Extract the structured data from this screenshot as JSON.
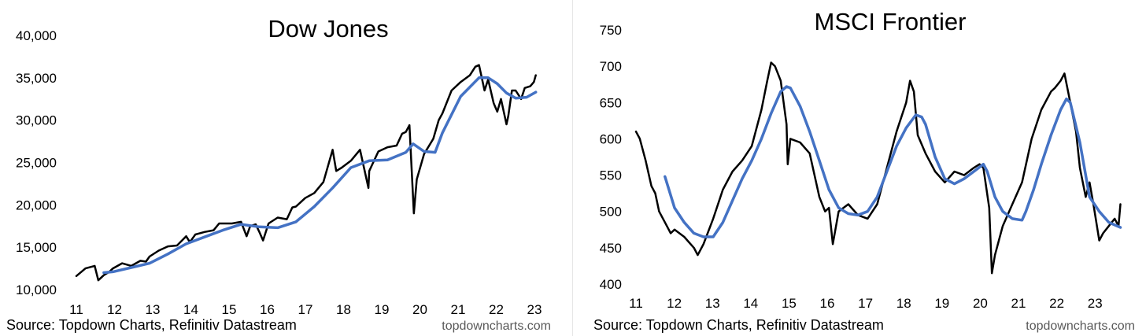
{
  "chart_data": [
    {
      "type": "line",
      "title": "Dow Jones",
      "xlabel": "",
      "ylabel": "",
      "x_ticks": [
        "11",
        "12",
        "13",
        "14",
        "15",
        "16",
        "17",
        "18",
        "19",
        "20",
        "21",
        "22",
        "23"
      ],
      "y_ticks": [
        "10,000",
        "15,000",
        "20,000",
        "25,000",
        "30,000",
        "35,000",
        "40,000"
      ],
      "xlim": [
        2011.0,
        2023.6
      ],
      "ylim": [
        10000,
        40000
      ],
      "grid": false,
      "series": [
        {
          "color": "#000000",
          "x": [
            2011.0,
            2011.25,
            2011.5,
            2011.6,
            2011.75,
            2011.9,
            2012.0,
            2012.25,
            2012.5,
            2012.75,
            2012.9,
            2013.0,
            2013.25,
            2013.5,
            2013.75,
            2014.0,
            2014.1,
            2014.25,
            2014.5,
            2014.75,
            2014.9,
            2015.0,
            2015.25,
            2015.5,
            2015.65,
            2015.75,
            2015.9,
            2016.0,
            2016.1,
            2016.25,
            2016.5,
            2016.75,
            2016.9,
            2017.0,
            2017.25,
            2017.5,
            2017.75,
            2018.0,
            2018.1,
            2018.25,
            2018.5,
            2018.75,
            2018.98,
            2019.0,
            2019.25,
            2019.5,
            2019.75,
            2019.9,
            2020.0,
            2020.1,
            2020.22,
            2020.3,
            2020.5,
            2020.75,
            2020.9,
            2021.0,
            2021.25,
            2021.5,
            2021.75,
            2021.9,
            2022.0,
            2022.15,
            2022.25,
            2022.4,
            2022.5,
            2022.6,
            2022.75,
            2022.8,
            2022.9,
            2023.0,
            2023.15,
            2023.25,
            2023.4,
            2023.5,
            2023.55
          ],
          "values": [
            11600,
            12500,
            12800,
            11100,
            11700,
            12100,
            12500,
            13100,
            12800,
            13400,
            13300,
            13900,
            14600,
            15100,
            15200,
            16300,
            15600,
            16500,
            16800,
            17000,
            17800,
            17800,
            17800,
            18000,
            16300,
            17500,
            17700,
            16800,
            15800,
            17800,
            18500,
            18300,
            19700,
            19800,
            20800,
            21400,
            22700,
            26500,
            24000,
            24400,
            25200,
            26500,
            22000,
            24000,
            26300,
            26800,
            27000,
            28400,
            28600,
            29400,
            19000,
            23000,
            26000,
            27800,
            30000,
            30800,
            33500,
            34500,
            35300,
            36300,
            36500,
            33500,
            34800,
            32000,
            31000,
            32500,
            29500,
            30500,
            33500,
            33500,
            32500,
            33800,
            34000,
            34500,
            35300
          ]
        },
        {
          "color": "#4472C4",
          "x": [
            2011.75,
            2012.0,
            2012.5,
            2013.0,
            2013.5,
            2014.0,
            2014.5,
            2015.0,
            2015.5,
            2016.0,
            2016.5,
            2017.0,
            2017.5,
            2018.0,
            2018.5,
            2019.0,
            2019.5,
            2020.0,
            2020.2,
            2020.5,
            2020.8,
            2021.0,
            2021.5,
            2022.0,
            2022.25,
            2022.5,
            2022.75,
            2023.0,
            2023.3,
            2023.55
          ],
          "values": [
            12000,
            12100,
            12600,
            13100,
            14200,
            15400,
            16200,
            17000,
            17700,
            17400,
            17300,
            18000,
            19800,
            22000,
            24400,
            25200,
            25300,
            26200,
            27200,
            26300,
            26200,
            28500,
            32800,
            35000,
            35000,
            34300,
            33200,
            32600,
            32700,
            33300
          ]
        }
      ],
      "source": "Source: Topdown Charts, Refinitiv Datastream",
      "watermark": "topdowncharts.com"
    },
    {
      "type": "line",
      "title": "MSCI Frontier",
      "xlabel": "",
      "ylabel": "",
      "x_ticks": [
        "11",
        "12",
        "13",
        "14",
        "15",
        "16",
        "17",
        "18",
        "19",
        "20",
        "21",
        "22",
        "23"
      ],
      "y_ticks": [
        "400",
        "450",
        "500",
        "550",
        "600",
        "650",
        "700",
        "750"
      ],
      "xlim": [
        2011.0,
        2023.6
      ],
      "ylim": [
        400,
        750
      ],
      "grid": false,
      "series": [
        {
          "color": "#000000",
          "x": [
            2011.0,
            2011.1,
            2011.25,
            2011.4,
            2011.5,
            2011.6,
            2011.75,
            2011.9,
            2012.0,
            2012.25,
            2012.5,
            2012.6,
            2012.75,
            2013.0,
            2013.25,
            2013.5,
            2013.75,
            2014.0,
            2014.25,
            2014.4,
            2014.5,
            2014.6,
            2014.75,
            2014.9,
            2014.93,
            2015.0,
            2015.25,
            2015.5,
            2015.75,
            2015.9,
            2016.0,
            2016.1,
            2016.25,
            2016.5,
            2016.75,
            2017.0,
            2017.25,
            2017.5,
            2017.75,
            2018.0,
            2018.1,
            2018.2,
            2018.3,
            2018.5,
            2018.75,
            2019.0,
            2019.25,
            2019.5,
            2019.75,
            2019.9,
            2020.0,
            2020.15,
            2020.22,
            2020.3,
            2020.5,
            2020.75,
            2021.0,
            2021.25,
            2021.5,
            2021.75,
            2021.85,
            2022.0,
            2022.1,
            2022.25,
            2022.4,
            2022.5,
            2022.65,
            2022.75,
            2022.85,
            2023.0,
            2023.1,
            2023.25,
            2023.4,
            2023.5,
            2023.55
          ],
          "values": [
            610,
            600,
            570,
            535,
            525,
            500,
            485,
            470,
            475,
            465,
            450,
            440,
            455,
            490,
            530,
            555,
            570,
            590,
            640,
            680,
            705,
            700,
            680,
            620,
            565,
            600,
            595,
            580,
            520,
            500,
            505,
            455,
            500,
            510,
            495,
            490,
            510,
            560,
            610,
            650,
            680,
            665,
            605,
            580,
            555,
            540,
            555,
            550,
            560,
            565,
            560,
            505,
            415,
            440,
            480,
            510,
            540,
            600,
            640,
            665,
            670,
            680,
            690,
            650,
            610,
            560,
            520,
            540,
            510,
            460,
            470,
            480,
            490,
            480,
            510
          ]
        },
        {
          "color": "#4472C4",
          "x": [
            2011.75,
            2012.0,
            2012.25,
            2012.5,
            2012.75,
            2013.0,
            2013.25,
            2013.5,
            2013.75,
            2014.0,
            2014.25,
            2014.5,
            2014.75,
            2014.9,
            2015.0,
            2015.25,
            2015.5,
            2015.75,
            2016.0,
            2016.25,
            2016.5,
            2016.75,
            2017.0,
            2017.25,
            2017.5,
            2017.75,
            2018.0,
            2018.25,
            2018.4,
            2018.5,
            2018.75,
            2019.0,
            2019.25,
            2019.5,
            2019.75,
            2020.0,
            2020.1,
            2020.3,
            2020.5,
            2020.75,
            2021.0,
            2021.1,
            2021.3,
            2021.5,
            2021.75,
            2022.0,
            2022.15,
            2022.25,
            2022.5,
            2022.75,
            2023.0,
            2023.25,
            2023.55
          ],
          "values": [
            548,
            505,
            485,
            470,
            465,
            465,
            485,
            515,
            545,
            570,
            600,
            635,
            665,
            672,
            670,
            645,
            610,
            570,
            530,
            505,
            497,
            495,
            500,
            520,
            555,
            590,
            615,
            633,
            630,
            620,
            575,
            545,
            538,
            545,
            555,
            565,
            555,
            520,
            500,
            490,
            488,
            500,
            530,
            565,
            605,
            640,
            655,
            650,
            595,
            520,
            500,
            485,
            478
          ]
        }
      ],
      "source": "Source: Topdown Charts, Refinitiv Datastream",
      "watermark": "topdowncharts.com"
    }
  ]
}
